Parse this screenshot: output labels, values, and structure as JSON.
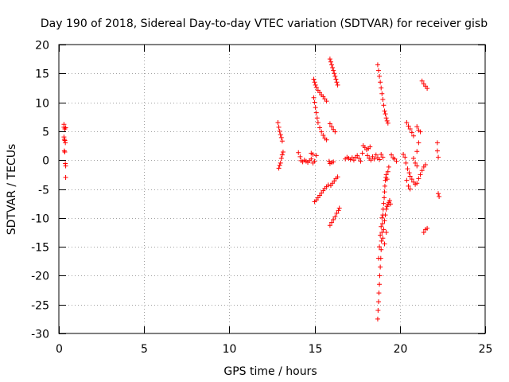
{
  "chart_data": {
    "type": "scatter",
    "title": "Day 190 of 2018, Sidereal Day-to-day VTEC variation (SDTVAR) for receiver gisb",
    "xlabel": "GPS time / hours",
    "ylabel": "SDTVAR / TECUs",
    "xlim": [
      0,
      25
    ],
    "ylim": [
      -30,
      20
    ],
    "xticks": [
      0,
      5,
      10,
      15,
      20,
      25
    ],
    "yticks": [
      -30,
      -25,
      -20,
      -15,
      -10,
      -5,
      0,
      5,
      10,
      15,
      20
    ],
    "grid": true,
    "legend": "none",
    "marker": "+",
    "series_color": "#ff0000",
    "series": [
      {
        "name": "SDTVAR",
        "points": [
          [
            0.3,
            6.2
          ],
          [
            0.3,
            5.7
          ],
          [
            0.35,
            5.4
          ],
          [
            0.4,
            5.6
          ],
          [
            0.3,
            4.0
          ],
          [
            0.32,
            3.6
          ],
          [
            0.35,
            3.4
          ],
          [
            0.38,
            3.0
          ],
          [
            0.32,
            1.6
          ],
          [
            0.35,
            1.4
          ],
          [
            0.38,
            -0.6
          ],
          [
            0.4,
            -1.0
          ],
          [
            0.4,
            -3.0
          ],
          [
            12.85,
            6.5
          ],
          [
            12.9,
            5.7
          ],
          [
            12.95,
            5.0
          ],
          [
            13.0,
            4.4
          ],
          [
            13.05,
            3.9
          ],
          [
            13.1,
            3.3
          ],
          [
            12.9,
            -1.4
          ],
          [
            12.95,
            -0.9
          ],
          [
            13.0,
            -0.5
          ],
          [
            13.05,
            0.3
          ],
          [
            13.1,
            0.9
          ],
          [
            13.15,
            1.4
          ],
          [
            14.05,
            1.3
          ],
          [
            14.15,
            0.6
          ],
          [
            14.2,
            -0.1
          ],
          [
            14.3,
            -0.3
          ],
          [
            14.4,
            0.0
          ],
          [
            14.5,
            -0.2
          ],
          [
            14.6,
            -0.4
          ],
          [
            14.7,
            -0.1
          ],
          [
            14.8,
            0.2
          ],
          [
            14.9,
            -0.5
          ],
          [
            15.0,
            -0.2
          ],
          [
            14.8,
            1.2
          ],
          [
            14.9,
            1.0
          ],
          [
            15.1,
            0.8
          ],
          [
            14.95,
            14.0
          ],
          [
            15.0,
            13.5
          ],
          [
            15.05,
            13.0
          ],
          [
            15.1,
            12.6
          ],
          [
            15.2,
            12.1
          ],
          [
            15.3,
            11.7
          ],
          [
            15.4,
            11.3
          ],
          [
            15.5,
            11.0
          ],
          [
            15.6,
            10.6
          ],
          [
            15.7,
            10.2
          ],
          [
            14.95,
            10.8
          ],
          [
            15.0,
            10.0
          ],
          [
            15.05,
            9.1
          ],
          [
            15.1,
            8.2
          ],
          [
            15.15,
            7.3
          ],
          [
            15.2,
            6.5
          ],
          [
            15.3,
            5.6
          ],
          [
            15.4,
            4.9
          ],
          [
            15.5,
            4.3
          ],
          [
            15.6,
            3.8
          ],
          [
            15.7,
            3.5
          ],
          [
            15.0,
            -7.2
          ],
          [
            15.1,
            -6.9
          ],
          [
            15.2,
            -6.5
          ],
          [
            15.3,
            -6.1
          ],
          [
            15.4,
            -5.7
          ],
          [
            15.5,
            -5.3
          ],
          [
            15.6,
            -4.9
          ],
          [
            15.7,
            -4.6
          ],
          [
            15.8,
            -4.3
          ],
          [
            15.9,
            17.5
          ],
          [
            15.95,
            17.0
          ],
          [
            16.0,
            16.5
          ],
          [
            16.05,
            16.0
          ],
          [
            16.1,
            15.5
          ],
          [
            16.15,
            15.0
          ],
          [
            16.2,
            14.5
          ],
          [
            16.25,
            14.0
          ],
          [
            16.3,
            13.5
          ],
          [
            16.35,
            13.0
          ],
          [
            15.9,
            6.3
          ],
          [
            16.0,
            5.8
          ],
          [
            16.1,
            5.3
          ],
          [
            16.2,
            4.9
          ],
          [
            15.85,
            -0.2
          ],
          [
            15.9,
            -0.6
          ],
          [
            16.0,
            -0.4
          ],
          [
            16.1,
            -0.3
          ],
          [
            15.95,
            -4.4
          ],
          [
            16.05,
            -4.0
          ],
          [
            16.15,
            -3.6
          ],
          [
            16.25,
            -3.2
          ],
          [
            16.35,
            -2.9
          ],
          [
            15.9,
            -11.3
          ],
          [
            16.0,
            -10.8
          ],
          [
            16.1,
            -10.3
          ],
          [
            16.2,
            -9.8
          ],
          [
            16.3,
            -9.2
          ],
          [
            16.4,
            -8.7
          ],
          [
            16.45,
            -8.3
          ],
          [
            16.8,
            0.2
          ],
          [
            16.9,
            0.5
          ],
          [
            17.0,
            0.3
          ],
          [
            17.1,
            0.1
          ],
          [
            17.2,
            0.4
          ],
          [
            17.3,
            0.0
          ],
          [
            17.4,
            0.5
          ],
          [
            17.5,
            0.8
          ],
          [
            17.6,
            0.3
          ],
          [
            17.7,
            -0.2
          ],
          [
            17.8,
            1.2
          ],
          [
            17.85,
            2.5
          ],
          [
            17.95,
            2.2
          ],
          [
            18.05,
            1.8
          ],
          [
            18.15,
            2.0
          ],
          [
            18.25,
            2.3
          ],
          [
            18.1,
            0.8
          ],
          [
            18.2,
            0.3
          ],
          [
            18.3,
            0.0
          ],
          [
            18.4,
            0.6
          ],
          [
            18.5,
            0.2
          ],
          [
            18.6,
            0.9
          ],
          [
            18.7,
            0.4
          ],
          [
            18.8,
            0.1
          ],
          [
            18.9,
            1.0
          ],
          [
            19.0,
            0.5
          ],
          [
            18.7,
            16.5
          ],
          [
            18.75,
            15.5
          ],
          [
            18.8,
            14.5
          ],
          [
            18.85,
            13.5
          ],
          [
            18.9,
            12.5
          ],
          [
            18.95,
            11.5
          ],
          [
            19.0,
            10.5
          ],
          [
            19.05,
            9.5
          ],
          [
            19.1,
            8.5
          ],
          [
            19.15,
            8.0
          ],
          [
            19.2,
            7.3
          ],
          [
            19.25,
            6.8
          ],
          [
            19.3,
            6.4
          ],
          [
            18.7,
            -27.5
          ],
          [
            18.72,
            -26.0
          ],
          [
            18.75,
            -24.5
          ],
          [
            18.77,
            -23.0
          ],
          [
            18.8,
            -21.5
          ],
          [
            18.82,
            -20.0
          ],
          [
            18.85,
            -18.5
          ],
          [
            18.88,
            -17.0
          ],
          [
            18.9,
            -15.5
          ],
          [
            18.92,
            -14.0
          ],
          [
            18.95,
            -12.5
          ],
          [
            18.98,
            -11.0
          ],
          [
            19.0,
            -9.5
          ],
          [
            19.02,
            -8.5
          ],
          [
            19.05,
            -7.5
          ],
          [
            19.08,
            -6.5
          ],
          [
            19.1,
            -5.5
          ],
          [
            19.12,
            -4.5
          ],
          [
            19.15,
            -3.5
          ],
          [
            19.18,
            -3.0
          ],
          [
            19.2,
            -2.5
          ],
          [
            19.25,
            -3.3
          ],
          [
            19.3,
            -2.0
          ],
          [
            19.35,
            -1.2
          ],
          [
            18.75,
            -17.0
          ],
          [
            18.8,
            -15.0
          ],
          [
            18.85,
            -13.0
          ],
          [
            18.9,
            -11.5
          ],
          [
            18.95,
            -10.0
          ],
          [
            19.0,
            -13.5
          ],
          [
            19.05,
            -12.0
          ],
          [
            19.1,
            -10.5
          ],
          [
            19.15,
            -9.5
          ],
          [
            19.2,
            -8.5
          ],
          [
            19.25,
            -8.0
          ],
          [
            19.3,
            -7.7
          ],
          [
            19.35,
            -7.3
          ],
          [
            19.4,
            -7.0
          ],
          [
            19.45,
            -7.6
          ],
          [
            19.1,
            -14.5
          ],
          [
            19.2,
            -12.5
          ],
          [
            19.5,
            0.9
          ],
          [
            19.6,
            0.4
          ],
          [
            19.7,
            0.2
          ],
          [
            19.8,
            -0.2
          ],
          [
            20.2,
            1.0
          ],
          [
            20.3,
            0.5
          ],
          [
            20.35,
            -0.5
          ],
          [
            20.45,
            -1.5
          ],
          [
            20.55,
            -2.2
          ],
          [
            20.6,
            -2.8
          ],
          [
            20.7,
            -3.3
          ],
          [
            20.8,
            -3.8
          ],
          [
            20.9,
            -4.2
          ],
          [
            21.0,
            -4.0
          ],
          [
            21.1,
            -3.2
          ],
          [
            21.2,
            -2.5
          ],
          [
            21.3,
            -1.8
          ],
          [
            21.4,
            -1.2
          ],
          [
            21.5,
            -0.8
          ],
          [
            20.4,
            -3.5
          ],
          [
            20.5,
            -4.5
          ],
          [
            20.6,
            -5.0
          ],
          [
            20.8,
            0.3
          ],
          [
            20.9,
            -0.5
          ],
          [
            21.0,
            -1.0
          ],
          [
            21.0,
            1.5
          ],
          [
            21.1,
            3.0
          ],
          [
            20.4,
            6.5
          ],
          [
            20.5,
            5.9
          ],
          [
            20.6,
            5.4
          ],
          [
            20.7,
            4.8
          ],
          [
            20.8,
            4.2
          ],
          [
            21.0,
            5.8
          ],
          [
            21.1,
            5.2
          ],
          [
            21.2,
            4.9
          ],
          [
            21.3,
            13.7
          ],
          [
            21.4,
            13.2
          ],
          [
            21.5,
            12.8
          ],
          [
            21.6,
            12.4
          ],
          [
            21.4,
            -12.5
          ],
          [
            21.5,
            -12.0
          ],
          [
            21.6,
            -11.8
          ],
          [
            22.2,
            3.0
          ],
          [
            22.2,
            1.6
          ],
          [
            22.25,
            0.5
          ],
          [
            22.25,
            -5.8
          ],
          [
            22.3,
            -6.3
          ]
        ]
      }
    ]
  }
}
